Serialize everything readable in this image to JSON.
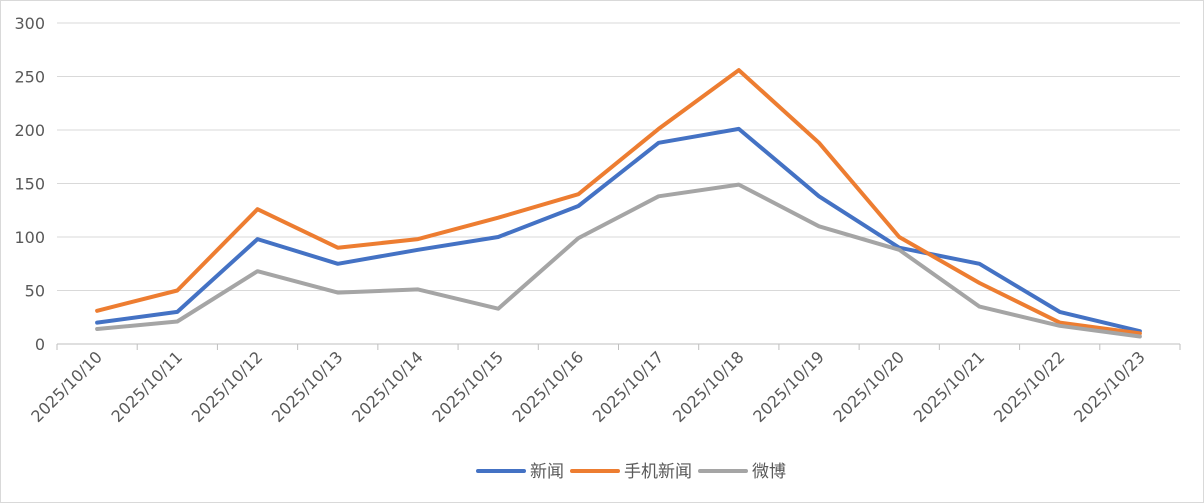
{
  "chart_data": {
    "type": "line",
    "title": "",
    "xlabel": "",
    "ylabel": "",
    "ylim": [
      0,
      300
    ],
    "y_ticks": [
      0,
      50,
      100,
      150,
      200,
      250,
      300
    ],
    "grid": true,
    "legend_position": "bottom",
    "categories": [
      "2025/10/10",
      "2025/10/11",
      "2025/10/12",
      "2025/10/13",
      "2025/10/14",
      "2025/10/15",
      "2025/10/16",
      "2025/10/17",
      "2025/10/18",
      "2025/10/19",
      "2025/10/20",
      "2025/10/21",
      "2025/10/22",
      "2025/10/23"
    ],
    "series": [
      {
        "name": "新闻",
        "color": "#4472c4",
        "values": [
          20,
          30,
          98,
          75,
          88,
          100,
          129,
          188,
          201,
          138,
          90,
          75,
          30,
          12
        ]
      },
      {
        "name": "手机新闻",
        "color": "#ed7d31",
        "values": [
          31,
          50,
          126,
          90,
          98,
          118,
          140,
          201,
          256,
          188,
          100,
          57,
          20,
          10
        ]
      },
      {
        "name": "微博",
        "color": "#a5a5a5",
        "values": [
          14,
          21,
          68,
          48,
          51,
          33,
          99,
          138,
          149,
          110,
          88,
          35,
          17,
          7
        ]
      }
    ]
  }
}
